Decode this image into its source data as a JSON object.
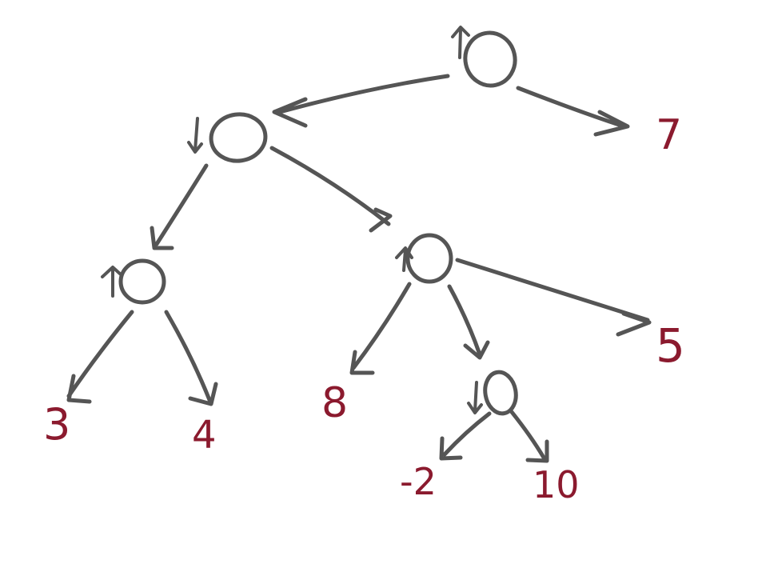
{
  "colors": {
    "stroke": "#555555",
    "leaf": "#8b1a2e",
    "background": "#ffffff"
  },
  "tree": {
    "root": {
      "marker": "up"
    },
    "root_left": {
      "marker": "down"
    },
    "left_left": {
      "marker": "up"
    },
    "left_right": {
      "marker": "up"
    },
    "deep_node": {
      "marker": "down"
    }
  },
  "leaves": {
    "leaf_7": "7",
    "leaf_3": "3",
    "leaf_4": "4",
    "leaf_8": "8",
    "leaf_5": "5",
    "leaf_neg2": "-2",
    "leaf_10": "10"
  }
}
